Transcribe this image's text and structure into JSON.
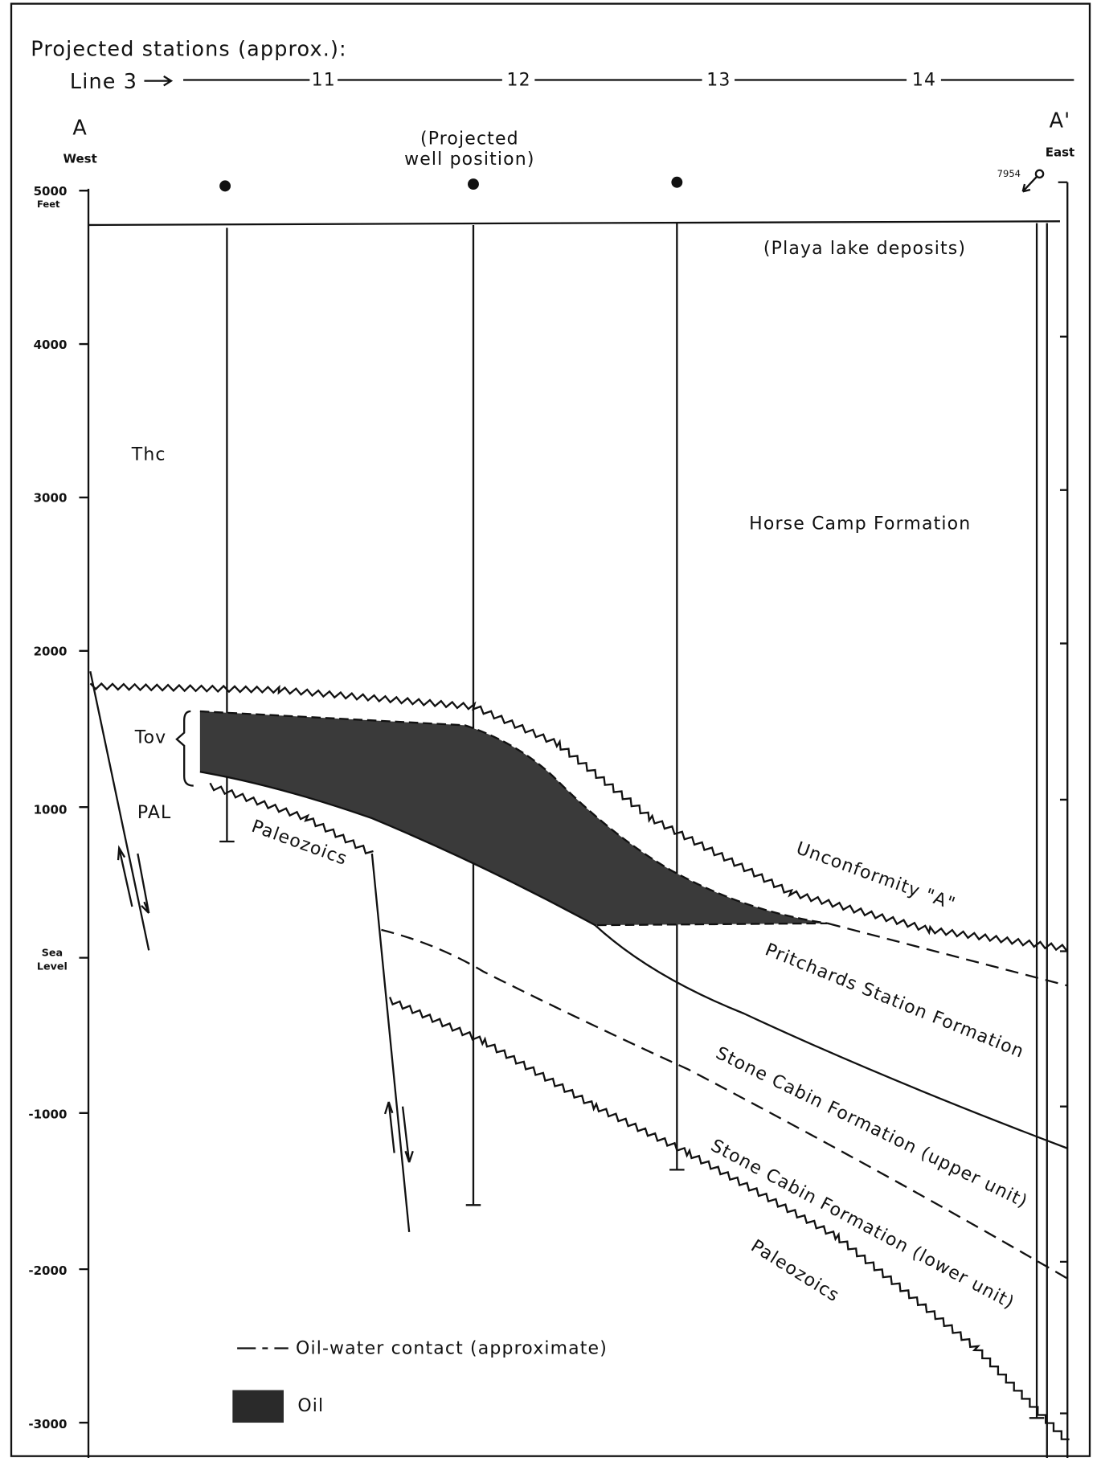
{
  "header": {
    "title": "Projected stations (approx.):",
    "line_label": "Line 3",
    "stations": [
      "11",
      "12",
      "13",
      "14"
    ]
  },
  "section": {
    "west_label": "A",
    "west": "West",
    "east_label": "A'",
    "east": "East",
    "well_note": [
      "(Projected",
      "well position)"
    ],
    "well_number": "7954"
  },
  "axis": {
    "unit": "Feet",
    "ticks": [
      "5000",
      "4000",
      "3000",
      "2000",
      "1000",
      "Sea",
      "Level",
      "-1000",
      "-2000",
      "-3000"
    ]
  },
  "units": {
    "playa": "(Playa lake deposits)",
    "thc": "Thc",
    "horse_camp": "Horse Camp Formation",
    "tov": "Tov",
    "pal": "PAL",
    "paleozoics_upper": "Paleozoics",
    "unconformity": "Unconformity \"A\"",
    "pritchards": "Pritchards Station Formation",
    "stone_upper": "Stone Cabin Formation (upper unit)",
    "stone_lower": "Stone Cabin Formation (lower unit)",
    "paleozoics_lower": "Paleozoics"
  },
  "legend": {
    "contact": "Oil-water contact (approximate)",
    "oil": "Oil"
  }
}
